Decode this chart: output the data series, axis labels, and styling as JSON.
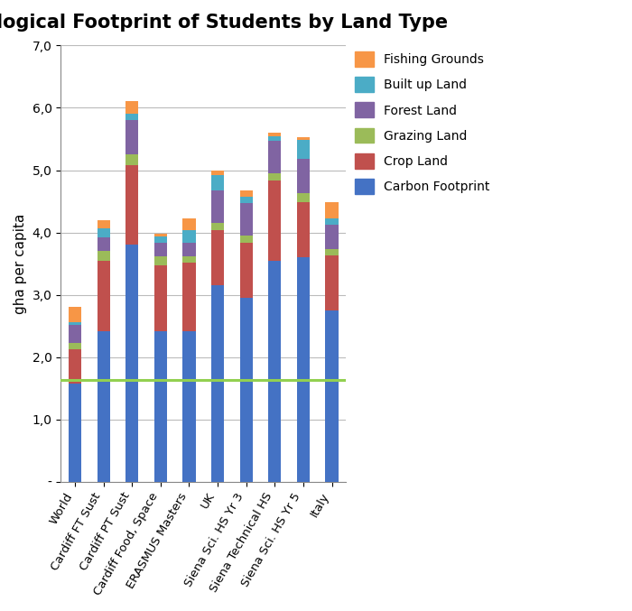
{
  "title": "Ecological Footprint of Students by Land Type",
  "ylabel": "gha per capita",
  "categories": [
    "World",
    "Cardiff FT Sust",
    "Cardiff PT Sust",
    "Cardiff Food, Space",
    "ERASMUS Masters",
    "UK",
    "Siena Sci. HS Yr 3",
    "Siena Technical HS",
    "Siena Sci. HS Yr 5",
    "Italy"
  ],
  "series": {
    "Carbon Footprint": [
      1.58,
      2.42,
      3.8,
      2.42,
      2.42,
      3.15,
      2.95,
      3.55,
      3.6,
      2.75
    ],
    "Crop Land": [
      0.55,
      1.13,
      1.28,
      1.05,
      1.1,
      0.88,
      0.88,
      1.28,
      0.88,
      0.88
    ],
    "Grazing Land": [
      0.1,
      0.15,
      0.18,
      0.14,
      0.1,
      0.12,
      0.12,
      0.12,
      0.15,
      0.1
    ],
    "Forest Land": [
      0.28,
      0.22,
      0.55,
      0.22,
      0.22,
      0.52,
      0.52,
      0.52,
      0.55,
      0.4
    ],
    "Built up Land": [
      0.05,
      0.15,
      0.1,
      0.1,
      0.2,
      0.25,
      0.1,
      0.08,
      0.3,
      0.1
    ],
    "Fishing Grounds": [
      0.25,
      0.12,
      0.2,
      0.05,
      0.18,
      0.08,
      0.1,
      0.05,
      0.05,
      0.25
    ]
  },
  "colors": {
    "Carbon Footprint": "#4472C4",
    "Crop Land": "#C0504D",
    "Grazing Land": "#9BBB59",
    "Forest Land": "#8064A2",
    "Built up Land": "#4BACC6",
    "Fishing Grounds": "#F79646"
  },
  "ylim": [
    0,
    7.0
  ],
  "yticks": [
    0.0,
    1.0,
    2.0,
    3.0,
    4.0,
    5.0,
    6.0,
    7.0
  ],
  "yticklabels": [
    "-",
    "1,0",
    "2,0",
    "3,0",
    "4,0",
    "5,0",
    "6,0",
    "7,0"
  ],
  "hline_y": 1.63,
  "hline_color": "#92D050",
  "background_color": "#FFFFFF",
  "bar_width": 0.45,
  "title_fontsize": 15,
  "ylabel_fontsize": 11,
  "tick_fontsize": 10,
  "legend_fontsize": 10
}
